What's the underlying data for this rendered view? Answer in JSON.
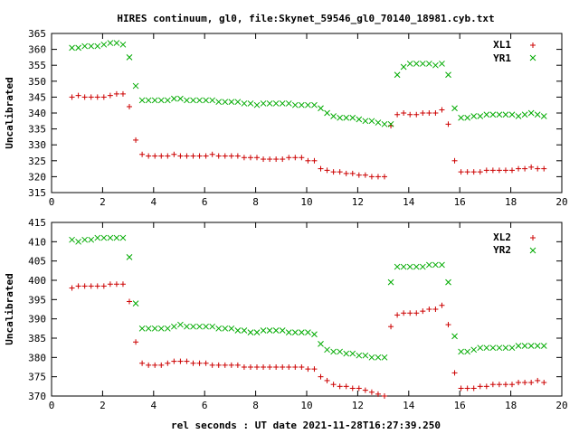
{
  "chart_data": {
    "title": "HIRES continuum, gl0, file:Skynet_59546_gl0_70140_18981.cyb.txt",
    "xlabel": "rel seconds : UT date 2021-11-28T16:27:39.250",
    "panels": [
      {
        "type": "scatter",
        "ylabel": "Uncalibrated",
        "xlim": [
          0,
          20
        ],
        "ylim": [
          315,
          365
        ],
        "xticks": [
          0,
          2,
          4,
          6,
          8,
          10,
          12,
          14,
          16,
          18,
          20
        ],
        "yticks": [
          315,
          320,
          325,
          330,
          335,
          340,
          345,
          350,
          355,
          360,
          365
        ],
        "legend_position": "top-right",
        "series": [
          {
            "name": "XL1",
            "marker": "plus",
            "color": "#cc0000",
            "x": [
              0.8,
              1.05,
              1.3,
              1.55,
              1.8,
              2.05,
              2.3,
              2.55,
              2.8,
              3.05,
              3.3,
              3.55,
              3.8,
              4.05,
              4.3,
              4.55,
              4.8,
              5.05,
              5.3,
              5.55,
              5.8,
              6.05,
              6.3,
              6.55,
              6.8,
              7.05,
              7.3,
              7.55,
              7.8,
              8.05,
              8.3,
              8.55,
              8.8,
              9.05,
              9.3,
              9.55,
              9.8,
              10.05,
              10.3,
              10.55,
              10.8,
              11.05,
              11.3,
              11.55,
              11.8,
              12.05,
              12.3,
              12.55,
              12.8,
              13.05,
              13.3,
              13.55,
              13.8,
              14.05,
              14.3,
              14.55,
              14.8,
              15.05,
              15.3,
              15.55,
              15.8,
              16.05,
              16.3,
              16.55,
              16.8,
              17.05,
              17.3,
              17.55,
              17.8,
              18.05,
              18.3,
              18.55,
              18.8,
              19.05,
              19.3
            ],
            "y": [
              345,
              345.5,
              345,
              345,
              345,
              345,
              345.5,
              346,
              346,
              342,
              331.5,
              327,
              326.5,
              326.5,
              326.5,
              326.5,
              327,
              326.5,
              326.5,
              326.5,
              326.5,
              326.5,
              327,
              326.5,
              326.5,
              326.5,
              326.5,
              326,
              326,
              326,
              325.5,
              325.5,
              325.5,
              325.5,
              326,
              326,
              326,
              325,
              325,
              322.5,
              322,
              321.5,
              321.5,
              321,
              321,
              320.5,
              320.5,
              320,
              320,
              320,
              336,
              339.5,
              340,
              339.5,
              339.5,
              340,
              340,
              340,
              341,
              336.5,
              325,
              321.5,
              321.5,
              321.5,
              321.5,
              322,
              322,
              322,
              322,
              322,
              322.5,
              322.5,
              323,
              322.5,
              322.5
            ]
          },
          {
            "name": "YR1",
            "marker": "cross",
            "color": "#00aa00",
            "x": [
              0.8,
              1.05,
              1.3,
              1.55,
              1.8,
              2.05,
              2.3,
              2.55,
              2.8,
              3.05,
              3.3,
              3.55,
              3.8,
              4.05,
              4.3,
              4.55,
              4.8,
              5.05,
              5.3,
              5.55,
              5.8,
              6.05,
              6.3,
              6.55,
              6.8,
              7.05,
              7.3,
              7.55,
              7.8,
              8.05,
              8.3,
              8.55,
              8.8,
              9.05,
              9.3,
              9.55,
              9.8,
              10.05,
              10.3,
              10.55,
              10.8,
              11.05,
              11.3,
              11.55,
              11.8,
              12.05,
              12.3,
              12.55,
              12.8,
              13.05,
              13.3,
              13.55,
              13.8,
              14.05,
              14.3,
              14.55,
              14.8,
              15.05,
              15.3,
              15.55,
              15.8,
              16.05,
              16.3,
              16.55,
              16.8,
              17.05,
              17.3,
              17.55,
              17.8,
              18.05,
              18.3,
              18.55,
              18.8,
              19.05,
              19.3
            ],
            "y": [
              360.5,
              360.5,
              361,
              361,
              361,
              361.5,
              362,
              362,
              361.5,
              357.5,
              348.5,
              344,
              344,
              344,
              344,
              344,
              344.5,
              344.5,
              344,
              344,
              344,
              344,
              344,
              343.5,
              343.5,
              343.5,
              343.5,
              343,
              343,
              342.5,
              343,
              343,
              343,
              343,
              343,
              342.5,
              342.5,
              342.5,
              342.5,
              341.5,
              340,
              339,
              338.5,
              338.5,
              338.5,
              338,
              337.5,
              337.5,
              337,
              336.5,
              336.5,
              352,
              354.5,
              355.5,
              355.5,
              355.5,
              355.5,
              355,
              355.5,
              352,
              341.5,
              338.5,
              338.5,
              339,
              339,
              339.5,
              339.5,
              339.5,
              339.5,
              339.5,
              339,
              339.5,
              340,
              339.5,
              339
            ]
          }
        ]
      },
      {
        "type": "scatter",
        "ylabel": "Uncalibrated",
        "xlim": [
          0,
          20
        ],
        "ylim": [
          370,
          415
        ],
        "xticks": [
          0,
          2,
          4,
          6,
          8,
          10,
          12,
          14,
          16,
          18,
          20
        ],
        "yticks": [
          370,
          375,
          380,
          385,
          390,
          395,
          400,
          405,
          410,
          415
        ],
        "legend_position": "top-right",
        "series": [
          {
            "name": "XL2",
            "marker": "plus",
            "color": "#cc0000",
            "x": [
              0.8,
              1.05,
              1.3,
              1.55,
              1.8,
              2.05,
              2.3,
              2.55,
              2.8,
              3.05,
              3.3,
              3.55,
              3.8,
              4.05,
              4.3,
              4.55,
              4.8,
              5.05,
              5.3,
              5.55,
              5.8,
              6.05,
              6.3,
              6.55,
              6.8,
              7.05,
              7.3,
              7.55,
              7.8,
              8.05,
              8.3,
              8.55,
              8.8,
              9.05,
              9.3,
              9.55,
              9.8,
              10.05,
              10.3,
              10.55,
              10.8,
              11.05,
              11.3,
              11.55,
              11.8,
              12.05,
              12.3,
              12.55,
              12.8,
              13.05,
              13.3,
              13.55,
              13.8,
              14.05,
              14.3,
              14.55,
              14.8,
              15.05,
              15.3,
              15.55,
              15.8,
              16.05,
              16.3,
              16.55,
              16.8,
              17.05,
              17.3,
              17.55,
              17.8,
              18.05,
              18.3,
              18.55,
              18.8,
              19.05,
              19.3
            ],
            "y": [
              398,
              398.5,
              398.5,
              398.5,
              398.5,
              398.5,
              399,
              399,
              399,
              394.5,
              384,
              378.5,
              378,
              378,
              378,
              378.5,
              379,
              379,
              379,
              378.5,
              378.5,
              378.5,
              378,
              378,
              378,
              378,
              378,
              377.5,
              377.5,
              377.5,
              377.5,
              377.5,
              377.5,
              377.5,
              377.5,
              377.5,
              377.5,
              377,
              377,
              375,
              374,
              373,
              372.5,
              372.5,
              372,
              372,
              371.5,
              371,
              370.5,
              370,
              388,
              391,
              391.5,
              391.5,
              391.5,
              392,
              392.5,
              392.5,
              393.5,
              388.5,
              376,
              372,
              372,
              372,
              372.5,
              372.5,
              373,
              373,
              373,
              373,
              373.5,
              373.5,
              373.5,
              374,
              373.5
            ]
          },
          {
            "name": "YR2",
            "marker": "cross",
            "color": "#00aa00",
            "x": [
              0.8,
              1.05,
              1.3,
              1.55,
              1.8,
              2.05,
              2.3,
              2.55,
              2.8,
              3.05,
              3.3,
              3.55,
              3.8,
              4.05,
              4.3,
              4.55,
              4.8,
              5.05,
              5.3,
              5.55,
              5.8,
              6.05,
              6.3,
              6.55,
              6.8,
              7.05,
              7.3,
              7.55,
              7.8,
              8.05,
              8.3,
              8.55,
              8.8,
              9.05,
              9.3,
              9.55,
              9.8,
              10.05,
              10.3,
              10.55,
              10.8,
              11.05,
              11.3,
              11.55,
              11.8,
              12.05,
              12.3,
              12.55,
              12.8,
              13.05,
              13.3,
              13.55,
              13.8,
              14.05,
              14.3,
              14.55,
              14.8,
              15.05,
              15.3,
              15.55,
              15.8,
              16.05,
              16.3,
              16.55,
              16.8,
              17.05,
              17.3,
              17.55,
              17.8,
              18.05,
              18.3,
              18.55,
              18.8,
              19.05,
              19.3
            ],
            "y": [
              410.5,
              410,
              410.5,
              410.5,
              411,
              411,
              411,
              411,
              411,
              406,
              394,
              387.5,
              387.5,
              387.5,
              387.5,
              387.5,
              388,
              388.5,
              388,
              388,
              388,
              388,
              388,
              387.5,
              387.5,
              387.5,
              387,
              387,
              386.5,
              386.5,
              387,
              387,
              387,
              387,
              386.5,
              386.5,
              386.5,
              386.5,
              386,
              383.5,
              382,
              381.5,
              381.5,
              381,
              381,
              380.5,
              380.5,
              380,
              380,
              380,
              399.5,
              403.5,
              403.5,
              403.5,
              403.5,
              403.5,
              404,
              404,
              404,
              399.5,
              385.5,
              381.5,
              381.5,
              382,
              382.5,
              382.5,
              382.5,
              382.5,
              382.5,
              382.5,
              383,
              383,
              383,
              383,
              383
            ]
          }
        ]
      }
    ]
  }
}
